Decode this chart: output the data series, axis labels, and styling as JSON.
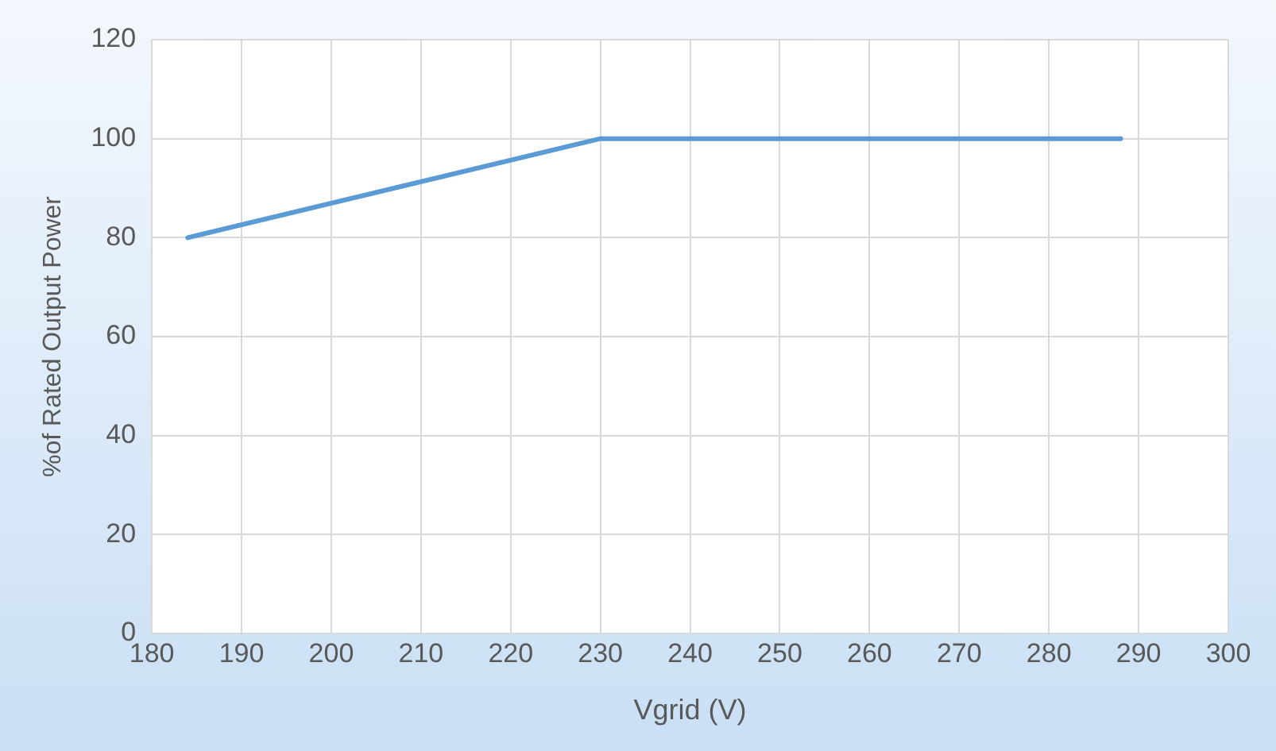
{
  "chart_data": {
    "type": "line",
    "xlabel": "Vgrid (V)",
    "ylabel": "%of Rated Output Power",
    "x": [
      184,
      230,
      288
    ],
    "series": [
      {
        "color": "#5b9bd5",
        "values": [
          80,
          100,
          100
        ]
      }
    ],
    "xlim": [
      180,
      300
    ],
    "xticks": [
      180,
      190,
      200,
      210,
      220,
      230,
      240,
      250,
      260,
      270,
      280,
      290,
      300
    ],
    "ylim": [
      0,
      120
    ],
    "yticks": [
      0,
      20,
      40,
      60,
      80,
      100,
      120
    ],
    "grid": true,
    "legend": false,
    "marker": "none",
    "line_style": "solid"
  }
}
